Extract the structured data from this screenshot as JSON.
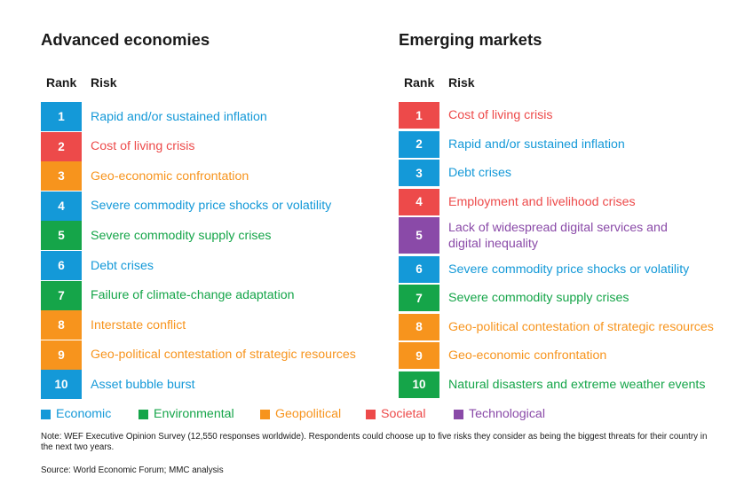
{
  "chart_data": {
    "type": "table",
    "categories": {
      "Economic": "#1499d8",
      "Environmental": "#15a549",
      "Geopolitical": "#f7941d",
      "Societal": "#ed4a4a",
      "Technological": "#8a4aa8"
    },
    "column_headers": {
      "rank": "Rank",
      "risk": "Risk"
    },
    "panels": [
      {
        "title": "Advanced economies",
        "rows": [
          {
            "rank": "1",
            "risk": "Rapid and/or sustained inflation",
            "category": "Economic"
          },
          {
            "rank": "2",
            "risk": "Cost of living crisis",
            "category": "Societal"
          },
          {
            "rank": "3",
            "risk": "Geo-economic confrontation",
            "category": "Geopolitical"
          },
          {
            "rank": "4",
            "risk": "Severe commodity price shocks or volatility",
            "category": "Economic"
          },
          {
            "rank": "5",
            "risk": "Severe commodity supply crises",
            "category": "Environmental"
          },
          {
            "rank": "6",
            "risk": "Debt crises",
            "category": "Economic"
          },
          {
            "rank": "7",
            "risk": "Failure of climate-change adaptation",
            "category": "Environmental"
          },
          {
            "rank": "8",
            "risk": "Interstate conflict",
            "category": "Geopolitical"
          },
          {
            "rank": "9",
            "risk": "Geo-political contestation of strategic resources",
            "category": "Geopolitical"
          },
          {
            "rank": "10",
            "risk": "Asset bubble burst",
            "category": "Economic"
          }
        ]
      },
      {
        "title": "Emerging markets",
        "rows": [
          {
            "rank": "1",
            "risk": "Cost of living crisis",
            "category": "Societal"
          },
          {
            "rank": "2",
            "risk": "Rapid and/or sustained inflation",
            "category": "Economic"
          },
          {
            "rank": "3",
            "risk": "Debt crises",
            "category": "Economic"
          },
          {
            "rank": "4",
            "risk": "Employment and livelihood crises",
            "category": "Societal"
          },
          {
            "rank": "5",
            "risk": "Lack of widespread digital services and\ndigital inequality",
            "category": "Technological"
          },
          {
            "rank": "6",
            "risk": "Severe commodity price shocks or volatility",
            "category": "Economic"
          },
          {
            "rank": "7",
            "risk": "Severe commodity supply crises",
            "category": "Environmental"
          },
          {
            "rank": "8",
            "risk": "Geo-political contestation of strategic resources",
            "category": "Geopolitical"
          },
          {
            "rank": "9",
            "risk": "Geo-economic confrontation",
            "category": "Geopolitical"
          },
          {
            "rank": "10",
            "risk": "Natural disasters and extreme weather events",
            "category": "Environmental"
          }
        ]
      }
    ],
    "legend": [
      "Economic",
      "Environmental",
      "Geopolitical",
      "Societal",
      "Technological"
    ]
  },
  "note": "Note: WEF Executive Opinion Survey (12,550 responses worldwide). Respondents could choose up to five risks they consider as being the biggest threats for their country in the next two years.",
  "source": "Source: World Economic Forum; MMC analysis"
}
